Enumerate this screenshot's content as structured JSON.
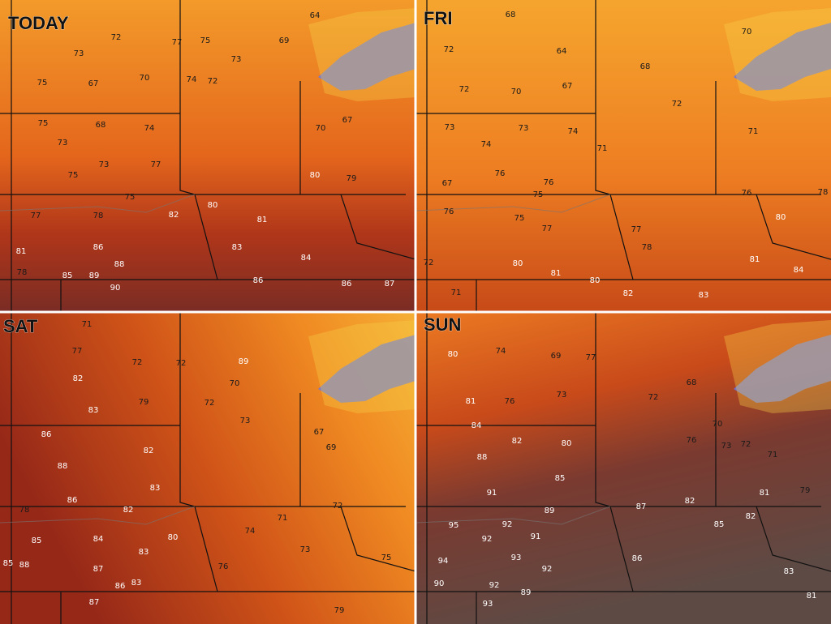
{
  "panels": [
    {
      "title": "TODAY",
      "labels": [
        72,
        73,
        75,
        67,
        70,
        77,
        75,
        73,
        69,
        64,
        74,
        72,
        75,
        68,
        74,
        73,
        77,
        75,
        73,
        75,
        70,
        67,
        80,
        79,
        80,
        81,
        82,
        86,
        88,
        89,
        90,
        85,
        83,
        86,
        84,
        86,
        87,
        81,
        78,
        77,
        78
      ]
    },
    {
      "title": "FRI",
      "labels": [
        68,
        72,
        64,
        70,
        67,
        72,
        73,
        74,
        73,
        74,
        71,
        76,
        76,
        75,
        67,
        76,
        75,
        77,
        80,
        81,
        80,
        82,
        71,
        72,
        70,
        68,
        72,
        71,
        76,
        78,
        80,
        81,
        84,
        83,
        77,
        78
      ]
    },
    {
      "title": "SAT",
      "labels": [
        71,
        77,
        82,
        72,
        79,
        83,
        86,
        82,
        88,
        86,
        83,
        82,
        78,
        85,
        84,
        83,
        80,
        85,
        87,
        86,
        83,
        87,
        72,
        89,
        70,
        72,
        73,
        67,
        69,
        71,
        74,
        73,
        72,
        76,
        75,
        79,
        88
      ]
    },
    {
      "title": "SUN",
      "labels": [
        80,
        74,
        69,
        77,
        73,
        81,
        76,
        84,
        82,
        80,
        88,
        85,
        91,
        89,
        95,
        92,
        91,
        92,
        94,
        93,
        92,
        92,
        89,
        93,
        90,
        86,
        82,
        81,
        70,
        73,
        72,
        71,
        76,
        68,
        72,
        85,
        82,
        79,
        83,
        81,
        87
      ]
    }
  ]
}
